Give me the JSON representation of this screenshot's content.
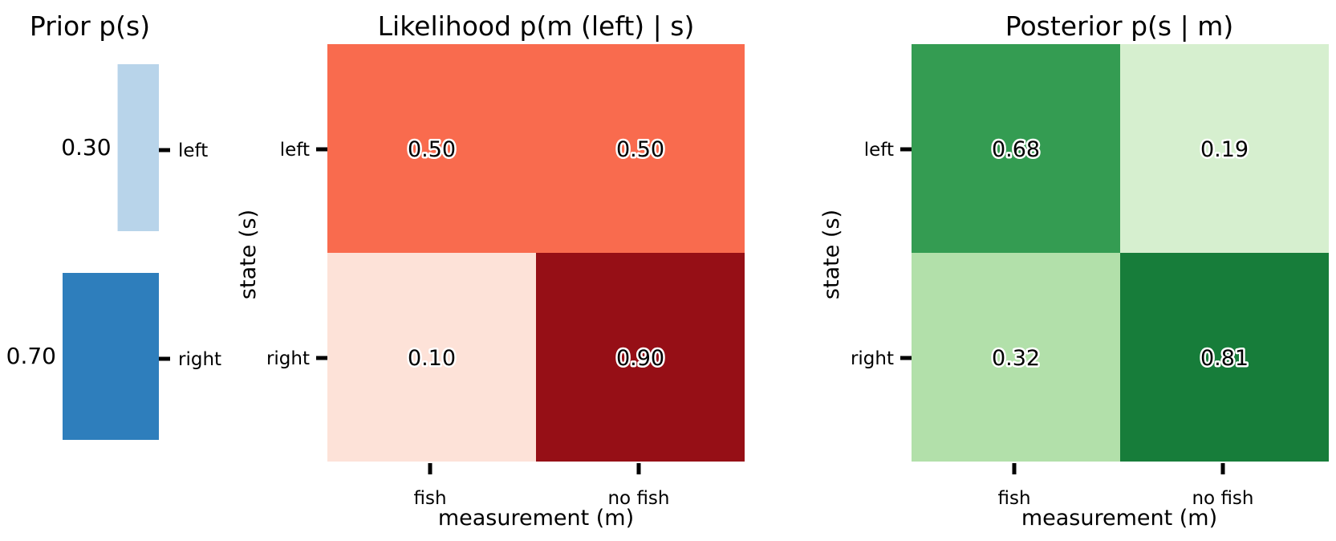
{
  "chart_data": [
    {
      "type": "bar",
      "title": "Prior p(s)",
      "categories": [
        "left",
        "right"
      ],
      "values": [
        0.3,
        0.7
      ],
      "value_labels": [
        "0.30",
        "0.70"
      ],
      "orientation": "horizontal",
      "colors": [
        "#b8d4ea",
        "#2e7ebc"
      ]
    },
    {
      "type": "heatmap",
      "title": "Likelihood p(m (left) | s)",
      "xlabel": "measurement (m)",
      "ylabel": "state (s)",
      "x_categories": [
        "fish",
        "no fish"
      ],
      "y_categories": [
        "left",
        "right"
      ],
      "values": [
        [
          0.5,
          0.5
        ],
        [
          0.1,
          0.9
        ]
      ],
      "value_labels": [
        [
          "0.50",
          "0.50"
        ],
        [
          "0.10",
          "0.90"
        ]
      ],
      "colormap": "Reds",
      "cell_colors": [
        [
          "#f96b4e",
          "#f96b4e"
        ],
        [
          "#fde2d8",
          "#960f16"
        ]
      ]
    },
    {
      "type": "heatmap",
      "title": "Posterior p(s | m)",
      "xlabel": "measurement (m)",
      "ylabel": "state (s)",
      "x_categories": [
        "fish",
        "no fish"
      ],
      "y_categories": [
        "left",
        "right"
      ],
      "values": [
        [
          0.68,
          0.19
        ],
        [
          0.32,
          0.81
        ]
      ],
      "value_labels": [
        [
          "0.68",
          "0.19"
        ],
        [
          "0.32",
          "0.81"
        ]
      ],
      "colormap": "Greens",
      "cell_colors": [
        [
          "#349c52",
          "#d6efcf"
        ],
        [
          "#b2e0aa",
          "#177d3a"
        ]
      ]
    }
  ]
}
